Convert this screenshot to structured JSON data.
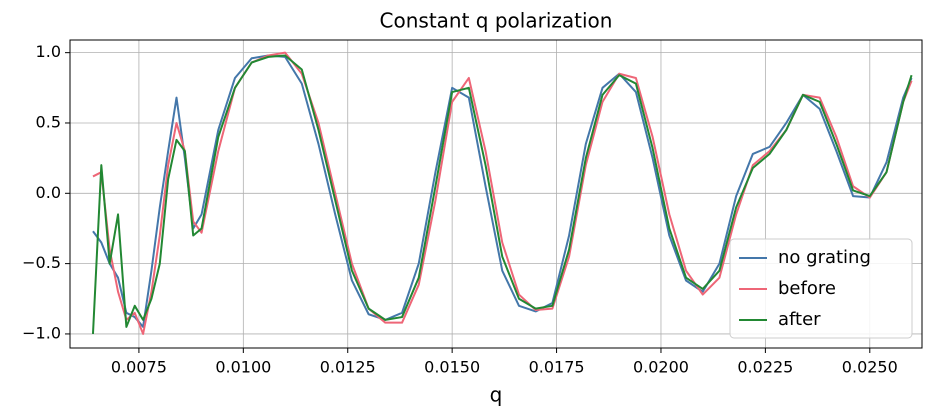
{
  "chart_data": {
    "type": "line",
    "title": "Constant q polarization",
    "x_label": "q",
    "x": [
      0.0064,
      0.0066,
      0.0068,
      0.007,
      0.0072,
      0.0074,
      0.0076,
      0.0078,
      0.008,
      0.0082,
      0.0084,
      0.0086,
      0.0088,
      0.009,
      0.0094,
      0.0098,
      0.0102,
      0.0106,
      0.011,
      0.0114,
      0.0118,
      0.0122,
      0.0126,
      0.013,
      0.0134,
      0.0138,
      0.0142,
      0.0146,
      0.015,
      0.0154,
      0.0158,
      0.0162,
      0.0166,
      0.017,
      0.0174,
      0.0178,
      0.0182,
      0.0186,
      0.019,
      0.0194,
      0.0198,
      0.0202,
      0.0206,
      0.021,
      0.0214,
      0.0218,
      0.0222,
      0.0226,
      0.023,
      0.0234,
      0.0238,
      0.0242,
      0.0246,
      0.025,
      0.0254,
      0.0258,
      0.026
    ],
    "series": [
      {
        "name": "no grating",
        "color": "#4477aa",
        "values": [
          -0.27,
          -0.35,
          -0.5,
          -0.6,
          -0.85,
          -0.88,
          -0.95,
          -0.55,
          -0.1,
          0.3,
          0.68,
          0.25,
          -0.25,
          -0.15,
          0.45,
          0.82,
          0.96,
          0.98,
          0.97,
          0.78,
          0.35,
          -0.15,
          -0.62,
          -0.86,
          -0.9,
          -0.85,
          -0.5,
          0.15,
          0.75,
          0.68,
          0.05,
          -0.55,
          -0.8,
          -0.84,
          -0.78,
          -0.3,
          0.35,
          0.75,
          0.85,
          0.72,
          0.25,
          -0.3,
          -0.62,
          -0.7,
          -0.5,
          -0.02,
          0.28,
          0.33,
          0.5,
          0.7,
          0.6,
          0.3,
          -0.02,
          -0.03,
          0.22,
          0.68,
          0.82
        ]
      },
      {
        "name": "before",
        "color": "#ee6677",
        "values": [
          0.12,
          0.15,
          -0.4,
          -0.7,
          -0.9,
          -0.85,
          -1.0,
          -0.7,
          -0.3,
          0.2,
          0.5,
          0.3,
          -0.2,
          -0.28,
          0.3,
          0.75,
          0.93,
          0.98,
          1.0,
          0.85,
          0.5,
          0.0,
          -0.5,
          -0.82,
          -0.92,
          -0.92,
          -0.65,
          -0.05,
          0.65,
          0.82,
          0.3,
          -0.35,
          -0.72,
          -0.83,
          -0.82,
          -0.45,
          0.2,
          0.65,
          0.85,
          0.82,
          0.4,
          -0.15,
          -0.55,
          -0.72,
          -0.6,
          -0.15,
          0.2,
          0.3,
          0.45,
          0.7,
          0.68,
          0.4,
          0.05,
          -0.03,
          0.15,
          0.65,
          0.8
        ]
      },
      {
        "name": "after",
        "color": "#228833",
        "values": [
          -1.0,
          0.2,
          -0.5,
          -0.15,
          -0.95,
          -0.8,
          -0.9,
          -0.75,
          -0.5,
          0.1,
          0.38,
          0.3,
          -0.3,
          -0.25,
          0.4,
          0.75,
          0.93,
          0.97,
          0.98,
          0.88,
          0.45,
          -0.05,
          -0.55,
          -0.82,
          -0.9,
          -0.88,
          -0.6,
          0.05,
          0.72,
          0.75,
          0.2,
          -0.45,
          -0.75,
          -0.82,
          -0.8,
          -0.4,
          0.25,
          0.7,
          0.84,
          0.78,
          0.32,
          -0.25,
          -0.6,
          -0.68,
          -0.55,
          -0.1,
          0.18,
          0.28,
          0.45,
          0.7,
          0.65,
          0.35,
          0.02,
          -0.02,
          0.15,
          0.65,
          0.84
        ]
      }
    ],
    "xlim": [
      0.00585,
      0.02625
    ],
    "ylim": [
      -1.1,
      1.09
    ],
    "xticks": [
      0.0075,
      {
        "value": 0.01,
        "label": "0.0100"
      },
      0.0125,
      {
        "value": 0.015,
        "label": "0.0150"
      },
      0.0175,
      {
        "value": 0.02,
        "label": "0.0200"
      },
      0.0225,
      {
        "value": 0.025,
        "label": "0.0250"
      }
    ],
    "yticks": [
      {
        "value": -1,
        "label": "−1.0"
      },
      {
        "value": -0.5,
        "label": "−0.5"
      },
      {
        "value": 0,
        "label": "0.0"
      },
      0.5,
      {
        "value": 1,
        "label": "1.0"
      }
    ],
    "grid": true,
    "legend": "lower right"
  }
}
